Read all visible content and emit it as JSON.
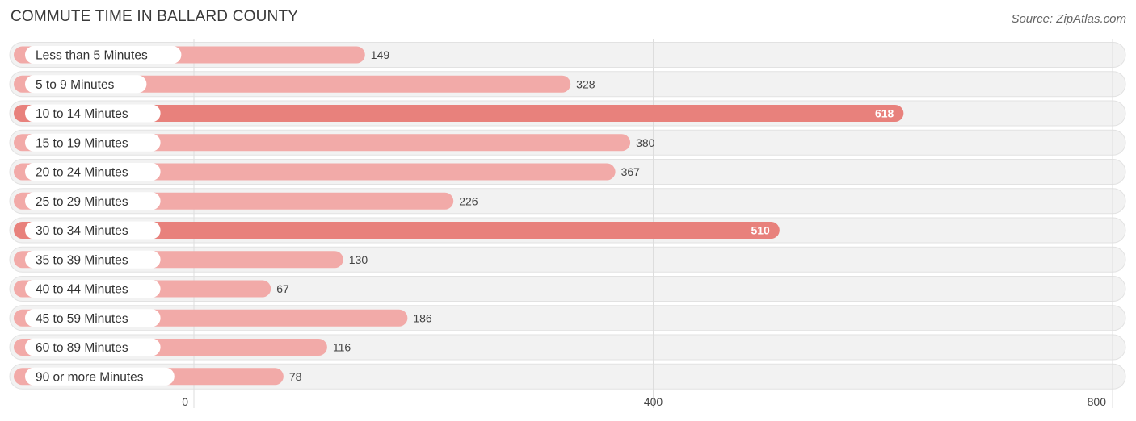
{
  "header": {
    "title": "COMMUTE TIME IN BALLARD COUNTY",
    "source": "Source: ZipAtlas.com"
  },
  "colors": {
    "bar_light": "#f2aaa8",
    "bar_strong": "#e8817c",
    "row_bg": "#f2f2f2",
    "grid": "#dddddd"
  },
  "chart_data": {
    "type": "bar",
    "orientation": "horizontal",
    "title": "COMMUTE TIME IN BALLARD COUNTY",
    "categories": [
      "Less than 5 Minutes",
      "5 to 9 Minutes",
      "10 to 14 Minutes",
      "15 to 19 Minutes",
      "20 to 24 Minutes",
      "25 to 29 Minutes",
      "30 to 34 Minutes",
      "35 to 39 Minutes",
      "40 to 44 Minutes",
      "45 to 59 Minutes",
      "60 to 89 Minutes",
      "90 or more Minutes"
    ],
    "values": [
      149,
      328,
      618,
      380,
      367,
      226,
      510,
      130,
      67,
      186,
      116,
      78
    ],
    "value_labels": [
      "149",
      "328",
      "618",
      "380",
      "367",
      "226",
      "510",
      "130",
      "67",
      "186",
      "116",
      "78"
    ],
    "xlim": [
      0,
      800
    ],
    "ticks": [
      0,
      400,
      800
    ],
    "tick_labels": [
      "0",
      "400",
      "800"
    ],
    "grid": true,
    "xlabel": "",
    "ylabel": ""
  }
}
